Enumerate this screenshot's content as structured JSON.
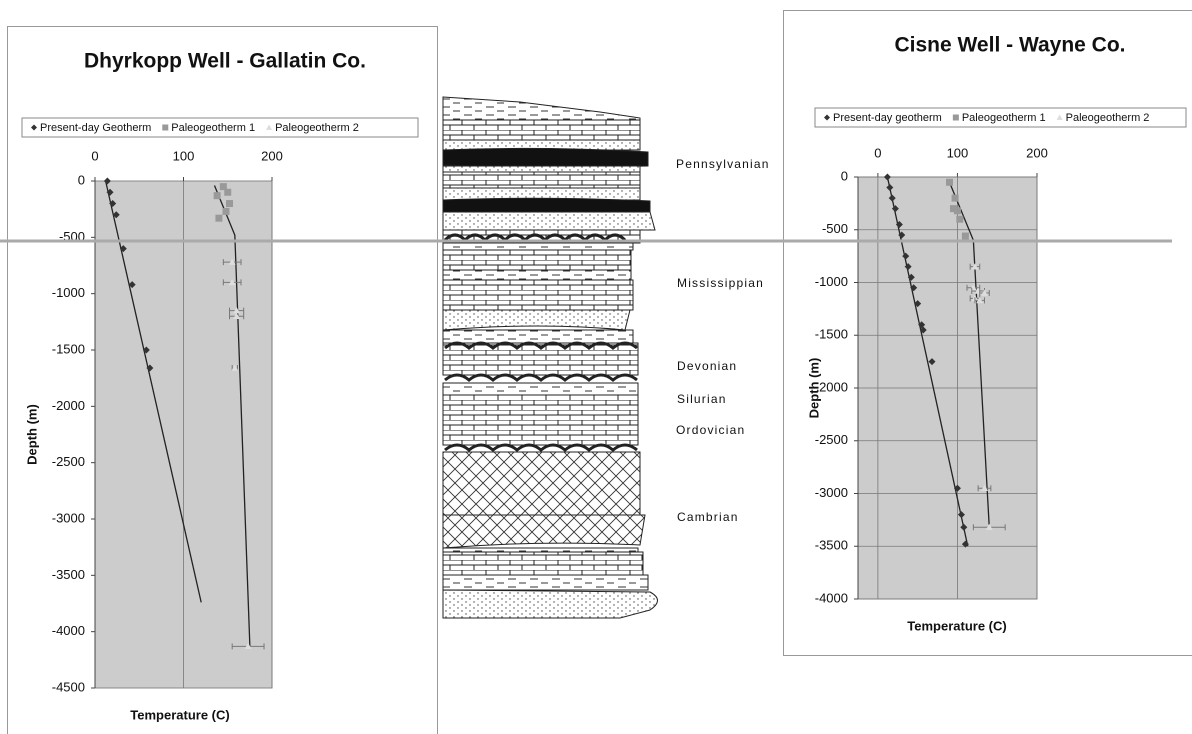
{
  "chart_data": [
    {
      "type": "scatter",
      "title": "Dhyrkopp Well - Gallatin Co.",
      "x_label": "Temperature (C)",
      "y_label": "Depth (m)",
      "xlim": [
        0,
        200
      ],
      "xticks": [
        0,
        100,
        200
      ],
      "ylim": [
        -4500,
        0
      ],
      "yticks": [
        0,
        -500,
        -1000,
        -1500,
        -2000,
        -2500,
        -3000,
        -3500,
        -4000,
        -4500
      ],
      "grid": "x",
      "series": [
        {
          "name": "Present-day Geotherm",
          "color": "#333333",
          "marker": "diamond",
          "x": [
            14,
            17,
            20,
            24,
            32,
            42,
            58,
            62
          ],
          "values": [
            0,
            -100,
            -200,
            -300,
            -600,
            -920,
            -1500,
            -1660
          ]
        },
        {
          "name": "Paleogeotherm 1",
          "color": "#999999",
          "marker": "square",
          "x": [
            145,
            150,
            138,
            152,
            148,
            140
          ],
          "values": [
            -50,
            -100,
            -130,
            -200,
            -270,
            -330
          ]
        },
        {
          "name": "Paleogeotherm 2",
          "color": "#dddddd",
          "marker": "triangle",
          "x": [
            155,
            155,
            160,
            160,
            158,
            173
          ],
          "values": [
            -720,
            -900,
            -1150,
            -1200,
            -1660,
            -4130
          ],
          "x_errors": [
            10,
            10,
            8,
            8,
            3,
            18
          ]
        }
      ],
      "trendlines": [
        {
          "color": "#222222",
          "x": [
            12,
            120
          ],
          "values": [
            0,
            -3740
          ]
        },
        {
          "color": "#222222",
          "x": [
            135,
            158,
            175
          ],
          "values": [
            -40,
            -480,
            -4130
          ]
        }
      ]
    },
    {
      "type": "scatter",
      "title": "Cisne Well - Wayne Co.",
      "x_label": "Temperature (C)",
      "y_label": "Depth (m)",
      "xlim": [
        -25,
        200
      ],
      "xticks": [
        0,
        100,
        200
      ],
      "ylim": [
        -4000,
        0
      ],
      "yticks": [
        0,
        -500,
        -1000,
        -1500,
        -2000,
        -2500,
        -3000,
        -3500,
        -4000
      ],
      "grid": "both",
      "series": [
        {
          "name": "Present-day geotherm",
          "color": "#333333",
          "marker": "diamond",
          "x": [
            12,
            15,
            18,
            22,
            27,
            30,
            35,
            38,
            42,
            45,
            50,
            55,
            57,
            68,
            100,
            105,
            108,
            110
          ],
          "values": [
            0,
            -100,
            -200,
            -300,
            -450,
            -550,
            -750,
            -850,
            -950,
            -1050,
            -1200,
            -1400,
            -1450,
            -1750,
            -2950,
            -3200,
            -3320,
            -3480
          ]
        },
        {
          "name": "Paleogeotherm 1",
          "color": "#999999",
          "marker": "square",
          "x": [
            90,
            97,
            95,
            100,
            103,
            110
          ],
          "values": [
            -50,
            -200,
            -300,
            -320,
            -400,
            -560
          ]
        },
        {
          "name": "Paleogeotherm 2",
          "color": "#dddddd",
          "marker": "triangle",
          "x": [
            122,
            120,
            126,
            134,
            122,
            128,
            134,
            140
          ],
          "values": [
            -850,
            -1050,
            -1080,
            -1100,
            -1150,
            -1170,
            -2950,
            -3320
          ],
          "x_errors": [
            6,
            8,
            8,
            6,
            6,
            6,
            8,
            20
          ]
        }
      ],
      "trendlines": [
        {
          "color": "#222222",
          "x": [
            12,
            113
          ],
          "values": [
            0,
            -3500
          ]
        },
        {
          "color": "#222222",
          "x": [
            90,
            120,
            140
          ],
          "values": [
            -50,
            -600,
            -3320
          ]
        }
      ]
    }
  ],
  "stratigraphic_column": {
    "periods": [
      "Pennsylvanian",
      "Mississippian",
      "Devonian",
      "Silurian",
      "Ordovician",
      "Cambrian"
    ]
  }
}
